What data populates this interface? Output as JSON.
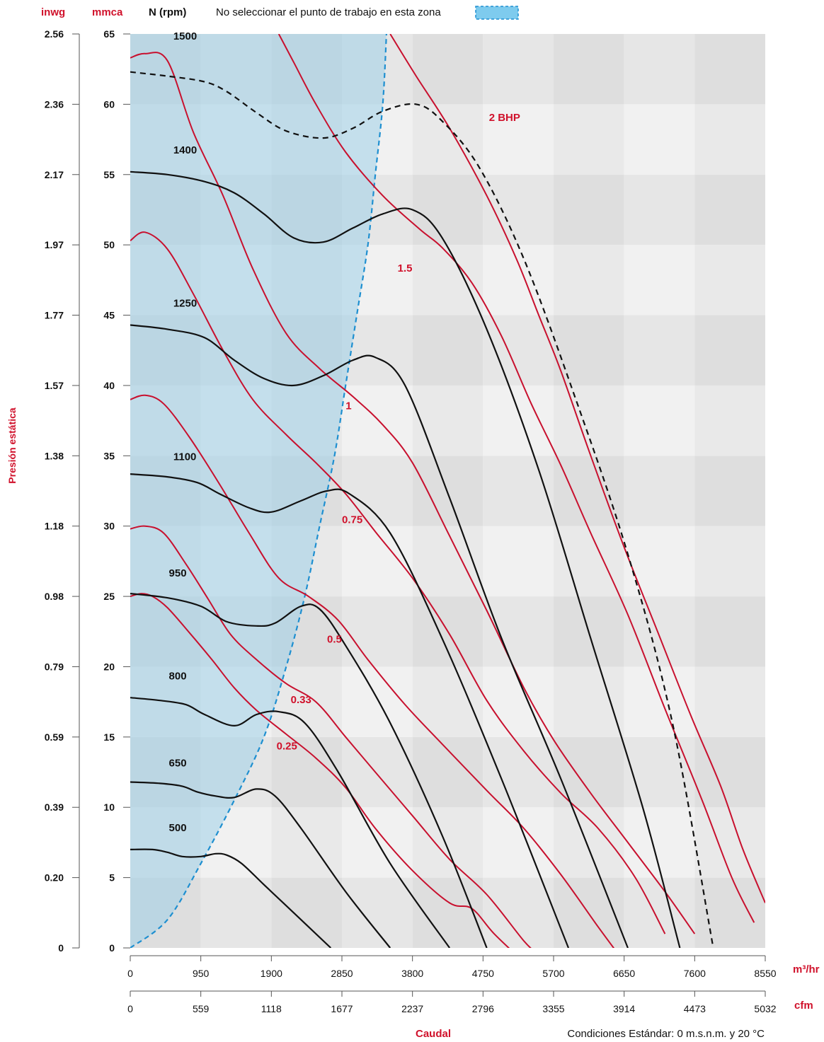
{
  "header": {
    "inwg_label": "inwg",
    "mmca_label": "mmca",
    "rpm_label": "N (rpm)",
    "zone_note": "No seleccionar el punto de trabajo en esta zona"
  },
  "colors": {
    "rpm_curve": "#111111",
    "bhp_curve": "#c8102e",
    "label_red": "#d0112b",
    "zone_fill": "#a9d6ea",
    "zone_edge": "#1e8fd0",
    "band_dark": "#dcdcdc",
    "band_light": "#ededed"
  },
  "footer": {
    "y_title": "Presión estática",
    "x_title": "Caudal",
    "conditions": "Condiciones Estándar: 0 m.s.n.m. y 20 °C",
    "unit_m3hr": "m³/hr",
    "unit_cfm": "cfm"
  },
  "chart_data": {
    "type": "line",
    "xlabel": "Caudal",
    "ylabel": "Presión estática",
    "xlim": [
      0,
      8550
    ],
    "ylim": [
      0,
      65
    ],
    "x_ticks_m3hr": [
      "0",
      "950",
      "1900",
      "2850",
      "3800",
      "4750",
      "5700",
      "6650",
      "7600",
      "8550"
    ],
    "x_ticks_cfm": [
      "0",
      "559",
      "1118",
      "1677",
      "2237",
      "2796",
      "3355",
      "3914",
      "4473",
      "5032"
    ],
    "y_ticks_mmca": [
      "0",
      "5",
      "10",
      "15",
      "20",
      "25",
      "30",
      "35",
      "40",
      "45",
      "50",
      "55",
      "60",
      "65"
    ],
    "y_ticks_inwg": [
      "0",
      "0.20",
      "0.39",
      "0.59",
      "0.79",
      "0.98",
      "1.18",
      "1.38",
      "1.57",
      "1.77",
      "1.97",
      "2.17",
      "2.36",
      "2.56"
    ],
    "rpm_series": [
      {
        "name": "500",
        "label_at": [
          520,
          8.3
        ],
        "points": [
          [
            0,
            7
          ],
          [
            300,
            7
          ],
          [
            500,
            6.8
          ],
          [
            700,
            6.5
          ],
          [
            950,
            6.5
          ],
          [
            1150,
            6.7
          ],
          [
            1300,
            6.6
          ],
          [
            1500,
            6
          ],
          [
            1800,
            4.5
          ],
          [
            2300,
            2
          ],
          [
            2700,
            0
          ]
        ]
      },
      {
        "name": "650",
        "label_at": [
          520,
          12.9
        ],
        "points": [
          [
            0,
            11.8
          ],
          [
            400,
            11.7
          ],
          [
            700,
            11.5
          ],
          [
            900,
            11.1
          ],
          [
            1150,
            10.8
          ],
          [
            1400,
            10.7
          ],
          [
            1700,
            11.3
          ],
          [
            1950,
            10.8
          ],
          [
            2300,
            8.5
          ],
          [
            2900,
            4
          ],
          [
            3500,
            0
          ]
        ]
      },
      {
        "name": "800",
        "label_at": [
          520,
          19.1
        ],
        "points": [
          [
            0,
            17.8
          ],
          [
            400,
            17.6
          ],
          [
            750,
            17.3
          ],
          [
            1000,
            16.6
          ],
          [
            1400,
            15.8
          ],
          [
            1700,
            16.6
          ],
          [
            2000,
            16.8
          ],
          [
            2350,
            16
          ],
          [
            2800,
            12.5
          ],
          [
            3500,
            6
          ],
          [
            4300,
            0
          ]
        ]
      },
      {
        "name": "950",
        "label_at": [
          520,
          26.4
        ],
        "points": [
          [
            0,
            25.2
          ],
          [
            500,
            24.9
          ],
          [
            950,
            24.3
          ],
          [
            1300,
            23.2
          ],
          [
            1700,
            22.9
          ],
          [
            1950,
            23.1
          ],
          [
            2300,
            24.3
          ],
          [
            2550,
            24.1
          ],
          [
            2900,
            21.5
          ],
          [
            3500,
            16
          ],
          [
            4200,
            8
          ],
          [
            4800,
            0
          ]
        ]
      },
      {
        "name": "1100",
        "label_at": [
          580,
          34.7
        ],
        "points": [
          [
            0,
            33.7
          ],
          [
            500,
            33.5
          ],
          [
            900,
            33.1
          ],
          [
            1200,
            32.3
          ],
          [
            1600,
            31.3
          ],
          [
            1900,
            31
          ],
          [
            2300,
            31.8
          ],
          [
            2650,
            32.5
          ],
          [
            2950,
            32.3
          ],
          [
            3500,
            29.5
          ],
          [
            4200,
            22
          ],
          [
            5000,
            12
          ],
          [
            5900,
            0
          ]
        ]
      },
      {
        "name": "1250",
        "label_at": [
          580,
          45.6
        ],
        "points": [
          [
            0,
            44.3
          ],
          [
            500,
            44
          ],
          [
            1000,
            43.4
          ],
          [
            1400,
            41.8
          ],
          [
            1800,
            40.5
          ],
          [
            2200,
            40
          ],
          [
            2600,
            40.7
          ],
          [
            3000,
            41.8
          ],
          [
            3300,
            42
          ],
          [
            3700,
            40
          ],
          [
            4300,
            32
          ],
          [
            5000,
            22
          ],
          [
            5800,
            12
          ],
          [
            6700,
            0
          ]
        ]
      },
      {
        "name": "1400",
        "label_at": [
          580,
          56.5
        ],
        "points": [
          [
            0,
            55.2
          ],
          [
            500,
            55
          ],
          [
            1000,
            54.5
          ],
          [
            1400,
            53.7
          ],
          [
            1800,
            52.2
          ],
          [
            2200,
            50.5
          ],
          [
            2600,
            50.2
          ],
          [
            3000,
            51.2
          ],
          [
            3400,
            52.2
          ],
          [
            3800,
            52.5
          ],
          [
            4200,
            50.5
          ],
          [
            4800,
            44
          ],
          [
            5500,
            34
          ],
          [
            6200,
            22
          ],
          [
            6900,
            10
          ],
          [
            7400,
            0
          ]
        ]
      },
      {
        "name": "1500",
        "style": "dashed",
        "label_at": [
          580,
          64.6
        ],
        "points": [
          [
            0,
            62.3
          ],
          [
            500,
            62
          ],
          [
            1000,
            61.6
          ],
          [
            1300,
            60.9
          ],
          [
            1700,
            59.4
          ],
          [
            2100,
            58.1
          ],
          [
            2600,
            57.6
          ],
          [
            3000,
            58.3
          ],
          [
            3400,
            59.5
          ],
          [
            3850,
            60
          ],
          [
            4200,
            58.8
          ],
          [
            4700,
            55.5
          ],
          [
            5300,
            49
          ],
          [
            6000,
            39
          ],
          [
            6700,
            28
          ],
          [
            7300,
            16
          ],
          [
            7850,
            0
          ]
        ]
      }
    ],
    "bhp_series": [
      {
        "name": "0.25",
        "label_at": [
          1970,
          14.1
        ],
        "points": [
          [
            0,
            25
          ],
          [
            150,
            25.2
          ],
          [
            300,
            25
          ],
          [
            500,
            24.2
          ],
          [
            800,
            22.4
          ],
          [
            1100,
            20.5
          ],
          [
            1400,
            18.5
          ],
          [
            1700,
            16.9
          ],
          [
            2100,
            15.2
          ],
          [
            2500,
            13.5
          ],
          [
            2900,
            11.4
          ],
          [
            3300,
            8.5
          ],
          [
            3800,
            5.5
          ],
          [
            4300,
            3.2
          ],
          [
            4600,
            2.8
          ],
          [
            4900,
            1
          ],
          [
            5300,
            -1
          ]
        ]
      },
      {
        "name": "0.33",
        "label_at": [
          2160,
          17.4
        ],
        "points": [
          [
            0,
            29.8
          ],
          [
            200,
            30
          ],
          [
            450,
            29.5
          ],
          [
            750,
            27.3
          ],
          [
            1050,
            24.8
          ],
          [
            1350,
            22.3
          ],
          [
            1700,
            20.5
          ],
          [
            2100,
            18.8
          ],
          [
            2500,
            17.5
          ],
          [
            2900,
            15
          ],
          [
            3300,
            12.5
          ],
          [
            3800,
            9.4
          ],
          [
            4300,
            6.3
          ],
          [
            4800,
            3.8
          ],
          [
            5300,
            0.5
          ],
          [
            5500,
            -0.5
          ]
        ]
      },
      {
        "name": "0.5",
        "label_at": [
          2650,
          21.7
        ],
        "points": [
          [
            0,
            39
          ],
          [
            200,
            39.3
          ],
          [
            450,
            38.7
          ],
          [
            800,
            36.3
          ],
          [
            1200,
            33
          ],
          [
            1600,
            29.5
          ],
          [
            2000,
            26.3
          ],
          [
            2400,
            25
          ],
          [
            2800,
            23.3
          ],
          [
            3200,
            20.5
          ],
          [
            3700,
            17.3
          ],
          [
            4200,
            14.5
          ],
          [
            4800,
            11.2
          ],
          [
            5300,
            8.5
          ],
          [
            5800,
            5.2
          ],
          [
            6300,
            1.5
          ],
          [
            6650,
            -1
          ]
        ]
      },
      {
        "name": "0.75",
        "label_at": [
          2850,
          30.2
        ],
        "points": [
          [
            0,
            50.3
          ],
          [
            200,
            50.9
          ],
          [
            500,
            49.7
          ],
          [
            850,
            46.5
          ],
          [
            1250,
            42.5
          ],
          [
            1650,
            39
          ],
          [
            2100,
            36.5
          ],
          [
            2500,
            34.5
          ],
          [
            2900,
            32.3
          ],
          [
            3300,
            29.6
          ],
          [
            3800,
            26.3
          ],
          [
            4300,
            22.3
          ],
          [
            4800,
            17.6
          ],
          [
            5300,
            14
          ],
          [
            5800,
            11
          ],
          [
            6300,
            8.5
          ],
          [
            6800,
            5
          ],
          [
            7200,
            1
          ]
        ]
      },
      {
        "name": "1",
        "label_at": [
          2900,
          38.3
        ],
        "points": [
          [
            0,
            63.3
          ],
          [
            200,
            63.6
          ],
          [
            500,
            63.1
          ],
          [
            850,
            58
          ],
          [
            1250,
            53.5
          ],
          [
            1650,
            48.3
          ],
          [
            2100,
            43.7
          ],
          [
            2550,
            41.2
          ],
          [
            3000,
            39.2
          ],
          [
            3400,
            37.2
          ],
          [
            3800,
            34.5
          ],
          [
            4300,
            29.3
          ],
          [
            4800,
            24
          ],
          [
            5300,
            18.5
          ],
          [
            5700,
            14.8
          ],
          [
            6200,
            11
          ],
          [
            6700,
            7.5
          ],
          [
            7200,
            4
          ],
          [
            7600,
            1
          ]
        ]
      },
      {
        "name": "1.5",
        "label_at": [
          3600,
          48.1
        ],
        "points": [
          [
            2000,
            65
          ],
          [
            2200,
            63
          ],
          [
            2500,
            60
          ],
          [
            2900,
            56.6
          ],
          [
            3400,
            53.5
          ],
          [
            3900,
            51.1
          ],
          [
            4200,
            49.8
          ],
          [
            4600,
            47.3
          ],
          [
            5000,
            43.5
          ],
          [
            5400,
            38.7
          ],
          [
            5800,
            34.3
          ],
          [
            6200,
            29.5
          ],
          [
            6700,
            23.7
          ],
          [
            7200,
            17
          ],
          [
            7700,
            10.5
          ],
          [
            8100,
            5
          ],
          [
            8400,
            1.8
          ]
        ]
      },
      {
        "name": "2 BHP",
        "label_at": [
          4830,
          58.8
        ],
        "points": [
          [
            3500,
            65
          ],
          [
            3850,
            62
          ],
          [
            4300,
            58.3
          ],
          [
            4800,
            53.5
          ],
          [
            5200,
            49
          ],
          [
            5500,
            45
          ],
          [
            5800,
            41
          ],
          [
            6200,
            35
          ],
          [
            6650,
            28.5
          ],
          [
            7100,
            22.5
          ],
          [
            7550,
            16.5
          ],
          [
            7950,
            11.5
          ],
          [
            8250,
            7
          ],
          [
            8550,
            3.2
          ]
        ]
      }
    ],
    "no_select_zone": {
      "description_ref": "header.zone_note",
      "boundary": [
        [
          0,
          0
        ],
        [
          500,
          2
        ],
        [
          950,
          6
        ],
        [
          1400,
          10.5
        ],
        [
          1800,
          15
        ],
        [
          2100,
          20
        ],
        [
          2350,
          25
        ],
        [
          2550,
          30
        ],
        [
          2750,
          35
        ],
        [
          2900,
          40
        ],
        [
          3050,
          45
        ],
        [
          3200,
          50
        ],
        [
          3300,
          55
        ],
        [
          3400,
          60
        ],
        [
          3450,
          65
        ]
      ]
    }
  }
}
